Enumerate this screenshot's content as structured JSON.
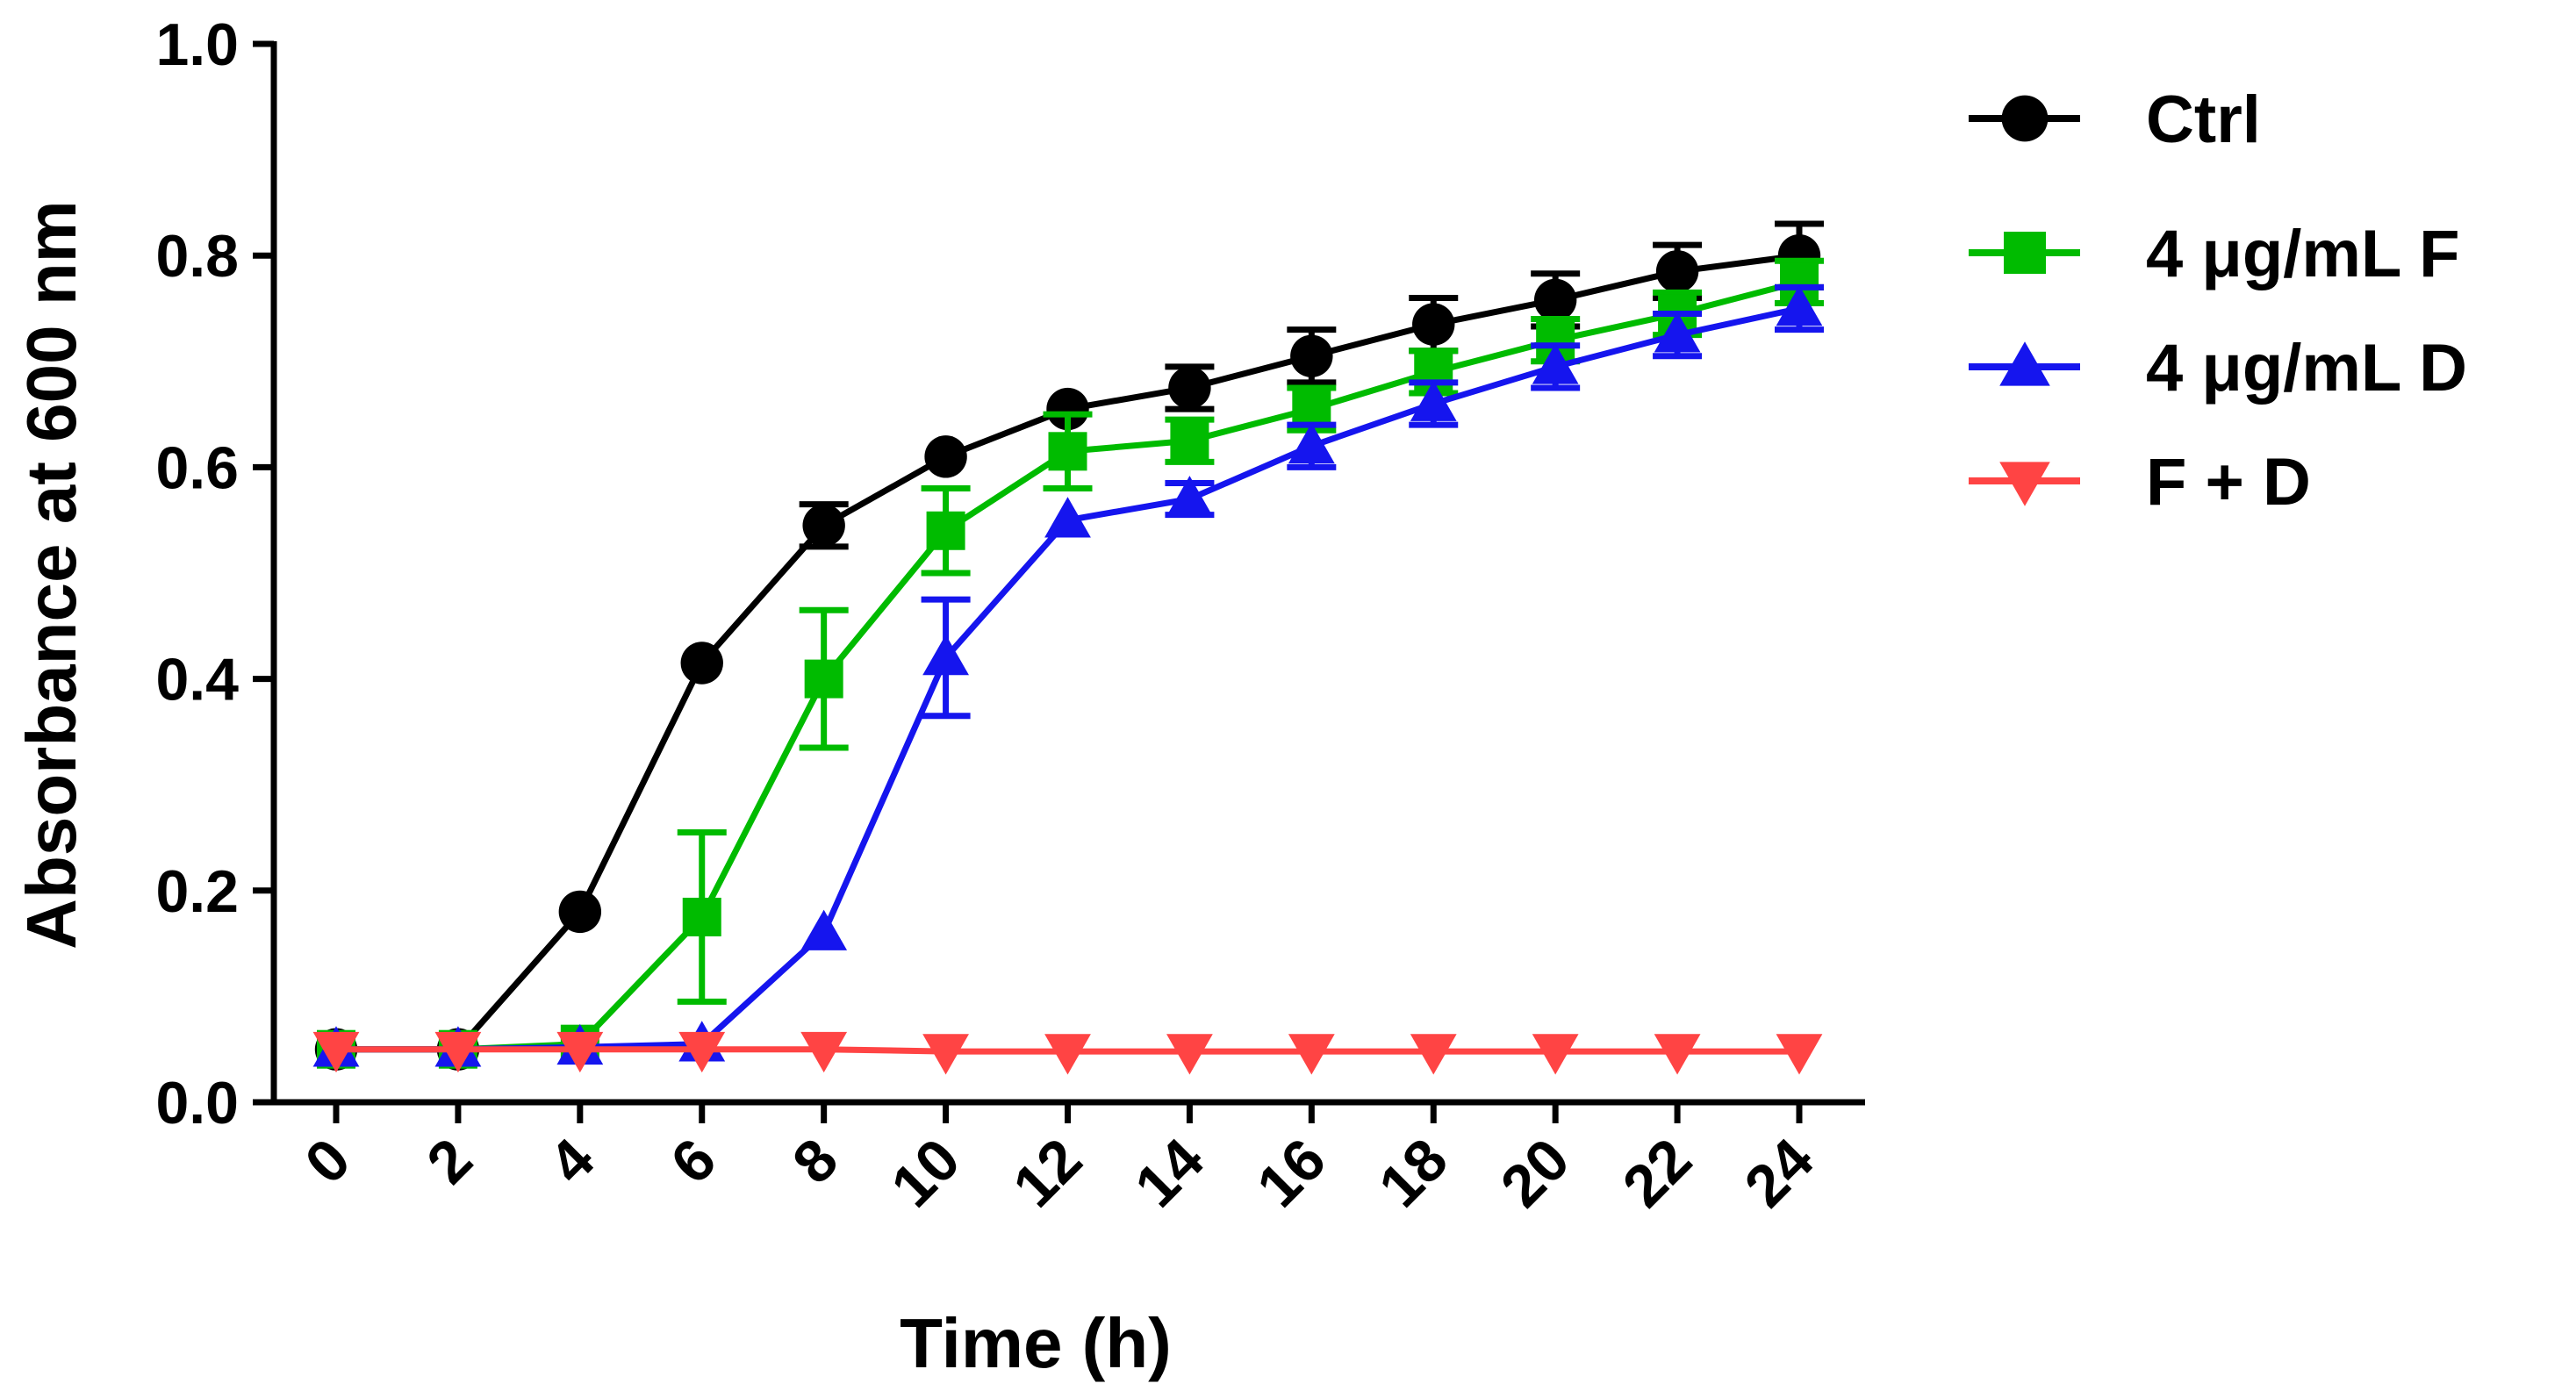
{
  "chart_data": {
    "type": "line",
    "title": "",
    "xlabel": "Time (h)",
    "ylabel": "Absorbance at 600 nm",
    "xlim": [
      0,
      24
    ],
    "ylim": [
      0,
      1.0
    ],
    "x": [
      0,
      2,
      4,
      6,
      8,
      10,
      12,
      14,
      16,
      18,
      20,
      22,
      24
    ],
    "x_tick_labels": [
      "0",
      "2",
      "4",
      "6",
      "8",
      "10",
      "12",
      "14",
      "16",
      "18",
      "20",
      "22",
      "24"
    ],
    "y_ticks": [
      0.0,
      0.2,
      0.4,
      0.6,
      0.8,
      1.0
    ],
    "y_tick_labels": [
      "0.0",
      "0.2",
      "0.4",
      "0.6",
      "0.8",
      "1.0"
    ],
    "grid": false,
    "legend_position": "top-right",
    "series": [
      {
        "name": "Ctrl",
        "color": "#000000",
        "marker": "circle",
        "values": [
          0.05,
          0.05,
          0.18,
          0.415,
          0.545,
          0.61,
          0.655,
          0.675,
          0.705,
          0.735,
          0.758,
          0.785,
          0.8
        ],
        "errors": [
          0,
          0,
          0,
          0,
          0.02,
          0,
          0,
          0.02,
          0.025,
          0.025,
          0.025,
          0.025,
          0.03
        ]
      },
      {
        "name": "4 μg/mL F",
        "color": "#00bb00",
        "marker": "square",
        "values": [
          0.05,
          0.05,
          0.055,
          0.175,
          0.4,
          0.54,
          0.615,
          0.625,
          0.655,
          0.69,
          0.72,
          0.745,
          0.775
        ],
        "errors": [
          0,
          0,
          0,
          0.08,
          0.065,
          0.04,
          0.035,
          0.02,
          0.02,
          0.02,
          0.02,
          0.02,
          0.02
        ]
      },
      {
        "name": "4 μg/mL D",
        "color": "#1515ee",
        "marker": "triangle-up",
        "values": [
          0.05,
          0.05,
          0.052,
          0.055,
          0.16,
          0.42,
          0.55,
          0.57,
          0.62,
          0.66,
          0.695,
          0.725,
          0.75
        ],
        "errors": [
          0,
          0,
          0,
          0,
          0,
          0.055,
          0,
          0.015,
          0.02,
          0.02,
          0.02,
          0.02,
          0.02
        ]
      },
      {
        "name": "F + D",
        "color": "#ff4444",
        "marker": "triangle-down",
        "values": [
          0.05,
          0.05,
          0.05,
          0.05,
          0.05,
          0.048,
          0.048,
          0.048,
          0.048,
          0.048,
          0.048,
          0.048,
          0.048
        ],
        "errors": [
          0,
          0,
          0,
          0,
          0,
          0,
          0,
          0,
          0,
          0,
          0,
          0,
          0
        ]
      }
    ]
  }
}
